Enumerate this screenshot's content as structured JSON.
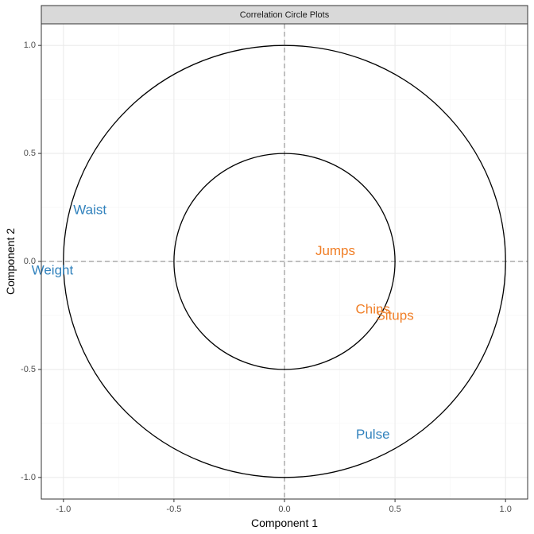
{
  "chart_data": {
    "type": "scatter",
    "title": "Correlation Circle Plots",
    "xlabel": "Component  1",
    "ylabel": "Component  2",
    "xlim": [
      -1.1,
      1.1
    ],
    "ylim": [
      -1.1,
      1.1
    ],
    "x_ticks": [
      -1.0,
      -0.5,
      0.0,
      0.5,
      1.0
    ],
    "y_ticks": [
      -1.0,
      -0.5,
      0.0,
      0.5,
      1.0
    ],
    "x_tick_labels": [
      "-1.0",
      "-0.5",
      "0.0",
      "0.5",
      "1.0"
    ],
    "y_tick_labels": [
      "-1.0",
      "-0.5",
      "0.0",
      "0.5",
      "1.0"
    ],
    "grid": true,
    "circles": [
      {
        "radius": 1.0
      },
      {
        "radius": 0.5
      }
    ],
    "reference_lines": {
      "x": 0,
      "y": 0,
      "style": "dashed"
    },
    "colors": {
      "blue": "#3182bd",
      "orange": "#f07e26",
      "circle": "#000000",
      "refline": "#999999",
      "strip_bg": "#d9d9d9",
      "grid_major": "#ebebeb",
      "grid_minor": "#f5f5f5"
    },
    "points": [
      {
        "label": "Waist",
        "x": -0.88,
        "y": 0.24,
        "color": "blue"
      },
      {
        "label": "Weight",
        "x": -1.05,
        "y": -0.04,
        "color": "blue"
      },
      {
        "label": "Pulse",
        "x": 0.4,
        "y": -0.8,
        "color": "blue"
      },
      {
        "label": "Jumps",
        "x": 0.23,
        "y": 0.05,
        "color": "orange"
      },
      {
        "label": "Chins",
        "x": 0.4,
        "y": -0.22,
        "color": "orange"
      },
      {
        "label": "Situps",
        "x": 0.5,
        "y": -0.25,
        "color": "orange"
      }
    ]
  }
}
